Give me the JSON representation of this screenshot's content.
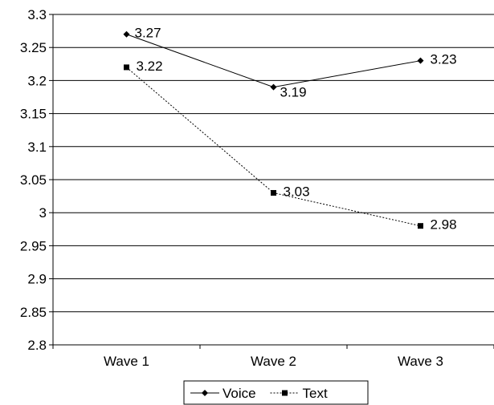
{
  "chart_data": {
    "type": "line",
    "title": "",
    "xlabel": "",
    "ylabel": "",
    "categories": [
      "Wave 1",
      "Wave 2",
      "Wave 3"
    ],
    "ylim": [
      2.8,
      3.3
    ],
    "yticks": [
      "3.3",
      "3.25",
      "3.2",
      "3.15",
      "3.1",
      "3.05",
      "3",
      "2.95",
      "2.9",
      "2.85",
      "2.8"
    ],
    "grid": true,
    "legend_position": "bottom",
    "series": [
      {
        "name": "Voice",
        "values": [
          3.27,
          3.19,
          3.23
        ],
        "labels": [
          "3.27",
          "3.19",
          "3.23"
        ],
        "color": "#000000",
        "line_style": "solid",
        "marker": "diamond"
      },
      {
        "name": "Text",
        "values": [
          3.22,
          3.03,
          2.98
        ],
        "labels": [
          "3.22",
          "3.03",
          "2.98"
        ],
        "color": "#000000",
        "line_style": "dotted",
        "marker": "square"
      }
    ]
  }
}
